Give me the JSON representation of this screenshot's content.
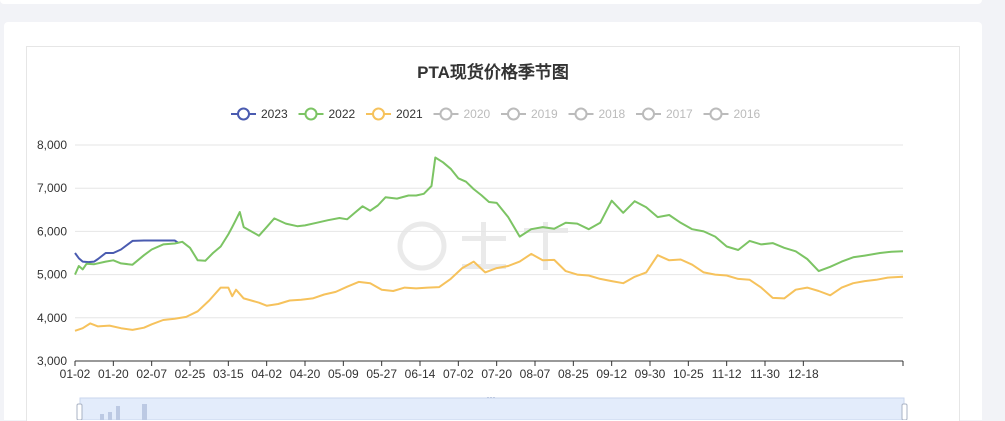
{
  "colors": {
    "axis": "#333333",
    "grid": "#e6e6e6",
    "inactive_legend": "#bbbbbb",
    "slider_fill": "#e3ecfb",
    "slider_border": "#c9d6ee"
  },
  "legend": [
    {
      "label": "2023",
      "color": "#4a5bb0",
      "active": true
    },
    {
      "label": "2022",
      "color": "#7cc464",
      "active": true
    },
    {
      "label": "2021",
      "color": "#f6c25c",
      "active": true
    },
    {
      "label": "2020",
      "color": "#bbbbbb",
      "active": false
    },
    {
      "label": "2019",
      "color": "#bbbbbb",
      "active": false
    },
    {
      "label": "2018",
      "color": "#bbbbbb",
      "active": false
    },
    {
      "label": "2017",
      "color": "#bbbbbb",
      "active": false
    },
    {
      "label": "2016",
      "color": "#bbbbbb",
      "active": false
    }
  ],
  "chart_data": {
    "type": "line",
    "title": "PTA现货价格季节图",
    "xlabel": "",
    "ylabel": "",
    "ylim": [
      3000,
      8000
    ],
    "y_ticks": [
      "3,000",
      "4,000",
      "5,000",
      "6,000",
      "7,000",
      "8,000"
    ],
    "x_ticks": [
      "01-02",
      "01-20",
      "02-07",
      "02-25",
      "03-15",
      "04-02",
      "04-20",
      "05-09",
      "05-27",
      "06-14",
      "07-02",
      "07-20",
      "08-07",
      "08-25",
      "09-12",
      "09-30",
      "10-25",
      "11-12",
      "11-30",
      "12-18"
    ],
    "x_index_range": [
      0,
      21.6
    ],
    "grid": true,
    "legend_position": "top",
    "series": [
      {
        "name": "2023",
        "color": "#4a5bb0",
        "x": [
          0,
          0.1,
          0.2,
          0.35,
          0.5,
          0.6,
          0.8,
          1.0,
          1.2,
          1.5,
          1.8,
          2.0,
          2.2,
          2.4,
          2.6,
          2.7
        ],
        "y": [
          5500,
          5380,
          5300,
          5290,
          5300,
          5360,
          5500,
          5500,
          5580,
          5780,
          5790,
          5790,
          5790,
          5790,
          5790,
          5730
        ]
      },
      {
        "name": "2022",
        "color": "#7cc464",
        "x": [
          0,
          0.1,
          0.2,
          0.3,
          0.5,
          0.8,
          1.0,
          1.2,
          1.5,
          1.8,
          2.0,
          2.3,
          2.6,
          2.8,
          3.0,
          3.2,
          3.4,
          3.6,
          3.8,
          4.0,
          4.1,
          4.2,
          4.3,
          4.4,
          4.6,
          4.8,
          5.0,
          5.2,
          5.5,
          5.8,
          6.0,
          6.3,
          6.6,
          6.9,
          7.1,
          7.3,
          7.5,
          7.7,
          7.9,
          8.1,
          8.4,
          8.7,
          8.9,
          9.1,
          9.3,
          9.4,
          9.6,
          9.8,
          10.0,
          10.2,
          10.4,
          10.6,
          10.8,
          11.0,
          11.3,
          11.6,
          11.9,
          12.2,
          12.5,
          12.8,
          13.1,
          13.4,
          13.7,
          14.0,
          14.3,
          14.6,
          14.9,
          15.2,
          15.5,
          15.8,
          16.1,
          16.4,
          16.7,
          17.0,
          17.3,
          17.6,
          17.9,
          18.2,
          18.5,
          18.8,
          19.1,
          19.4,
          19.7,
          20.0,
          20.3,
          20.6,
          21.0,
          21.3,
          21.6
        ],
        "y": [
          5000,
          5200,
          5120,
          5250,
          5240,
          5300,
          5330,
          5260,
          5230,
          5450,
          5580,
          5700,
          5720,
          5760,
          5620,
          5330,
          5320,
          5500,
          5650,
          5930,
          6100,
          6270,
          6450,
          6100,
          6000,
          5900,
          6100,
          6300,
          6180,
          6120,
          6140,
          6200,
          6260,
          6310,
          6280,
          6430,
          6580,
          6480,
          6600,
          6790,
          6760,
          6830,
          6830,
          6870,
          7050,
          7710,
          7600,
          7450,
          7230,
          7150,
          6980,
          6840,
          6680,
          6660,
          6330,
          5880,
          6050,
          6100,
          6060,
          6200,
          6180,
          6050,
          6200,
          6710,
          6430,
          6700,
          6560,
          6330,
          6380,
          6200,
          6050,
          6000,
          5880,
          5650,
          5570,
          5780,
          5700,
          5730,
          5620,
          5540,
          5360,
          5080,
          5180,
          5300,
          5400,
          5440,
          5500,
          5530,
          5540
        ]
      },
      {
        "name": "2021",
        "color": "#f6c25c",
        "x": [
          0,
          0.2,
          0.4,
          0.6,
          0.9,
          1.2,
          1.5,
          1.8,
          2.0,
          2.3,
          2.6,
          2.9,
          3.2,
          3.5,
          3.8,
          4.0,
          4.1,
          4.2,
          4.4,
          4.6,
          4.8,
          5.0,
          5.3,
          5.6,
          5.9,
          6.2,
          6.5,
          6.8,
          7.1,
          7.4,
          7.7,
          8.0,
          8.3,
          8.6,
          8.9,
          9.2,
          9.5,
          9.8,
          10.1,
          10.4,
          10.7,
          11.0,
          11.3,
          11.6,
          11.9,
          12.2,
          12.5,
          12.8,
          13.1,
          13.4,
          13.7,
          14.0,
          14.3,
          14.6,
          14.9,
          15.2,
          15.5,
          15.8,
          16.1,
          16.4,
          16.7,
          17.0,
          17.3,
          17.6,
          17.9,
          18.2,
          18.5,
          18.8,
          19.1,
          19.4,
          19.7,
          20.0,
          20.3,
          20.6,
          20.9,
          21.2,
          21.6
        ],
        "y": [
          3700,
          3760,
          3870,
          3800,
          3820,
          3760,
          3720,
          3770,
          3850,
          3950,
          3980,
          4020,
          4150,
          4400,
          4700,
          4700,
          4500,
          4650,
          4450,
          4400,
          4350,
          4280,
          4320,
          4400,
          4420,
          4450,
          4540,
          4600,
          4720,
          4830,
          4800,
          4650,
          4620,
          4700,
          4680,
          4700,
          4710,
          4900,
          5150,
          5300,
          5050,
          5150,
          5200,
          5300,
          5480,
          5330,
          5340,
          5080,
          5000,
          4980,
          4900,
          4850,
          4800,
          4950,
          5050,
          5450,
          5330,
          5350,
          5230,
          5050,
          5000,
          4980,
          4900,
          4880,
          4700,
          4460,
          4450,
          4650,
          4700,
          4620,
          4520,
          4700,
          4800,
          4850,
          4880,
          4930,
          4950
        ]
      }
    ]
  }
}
